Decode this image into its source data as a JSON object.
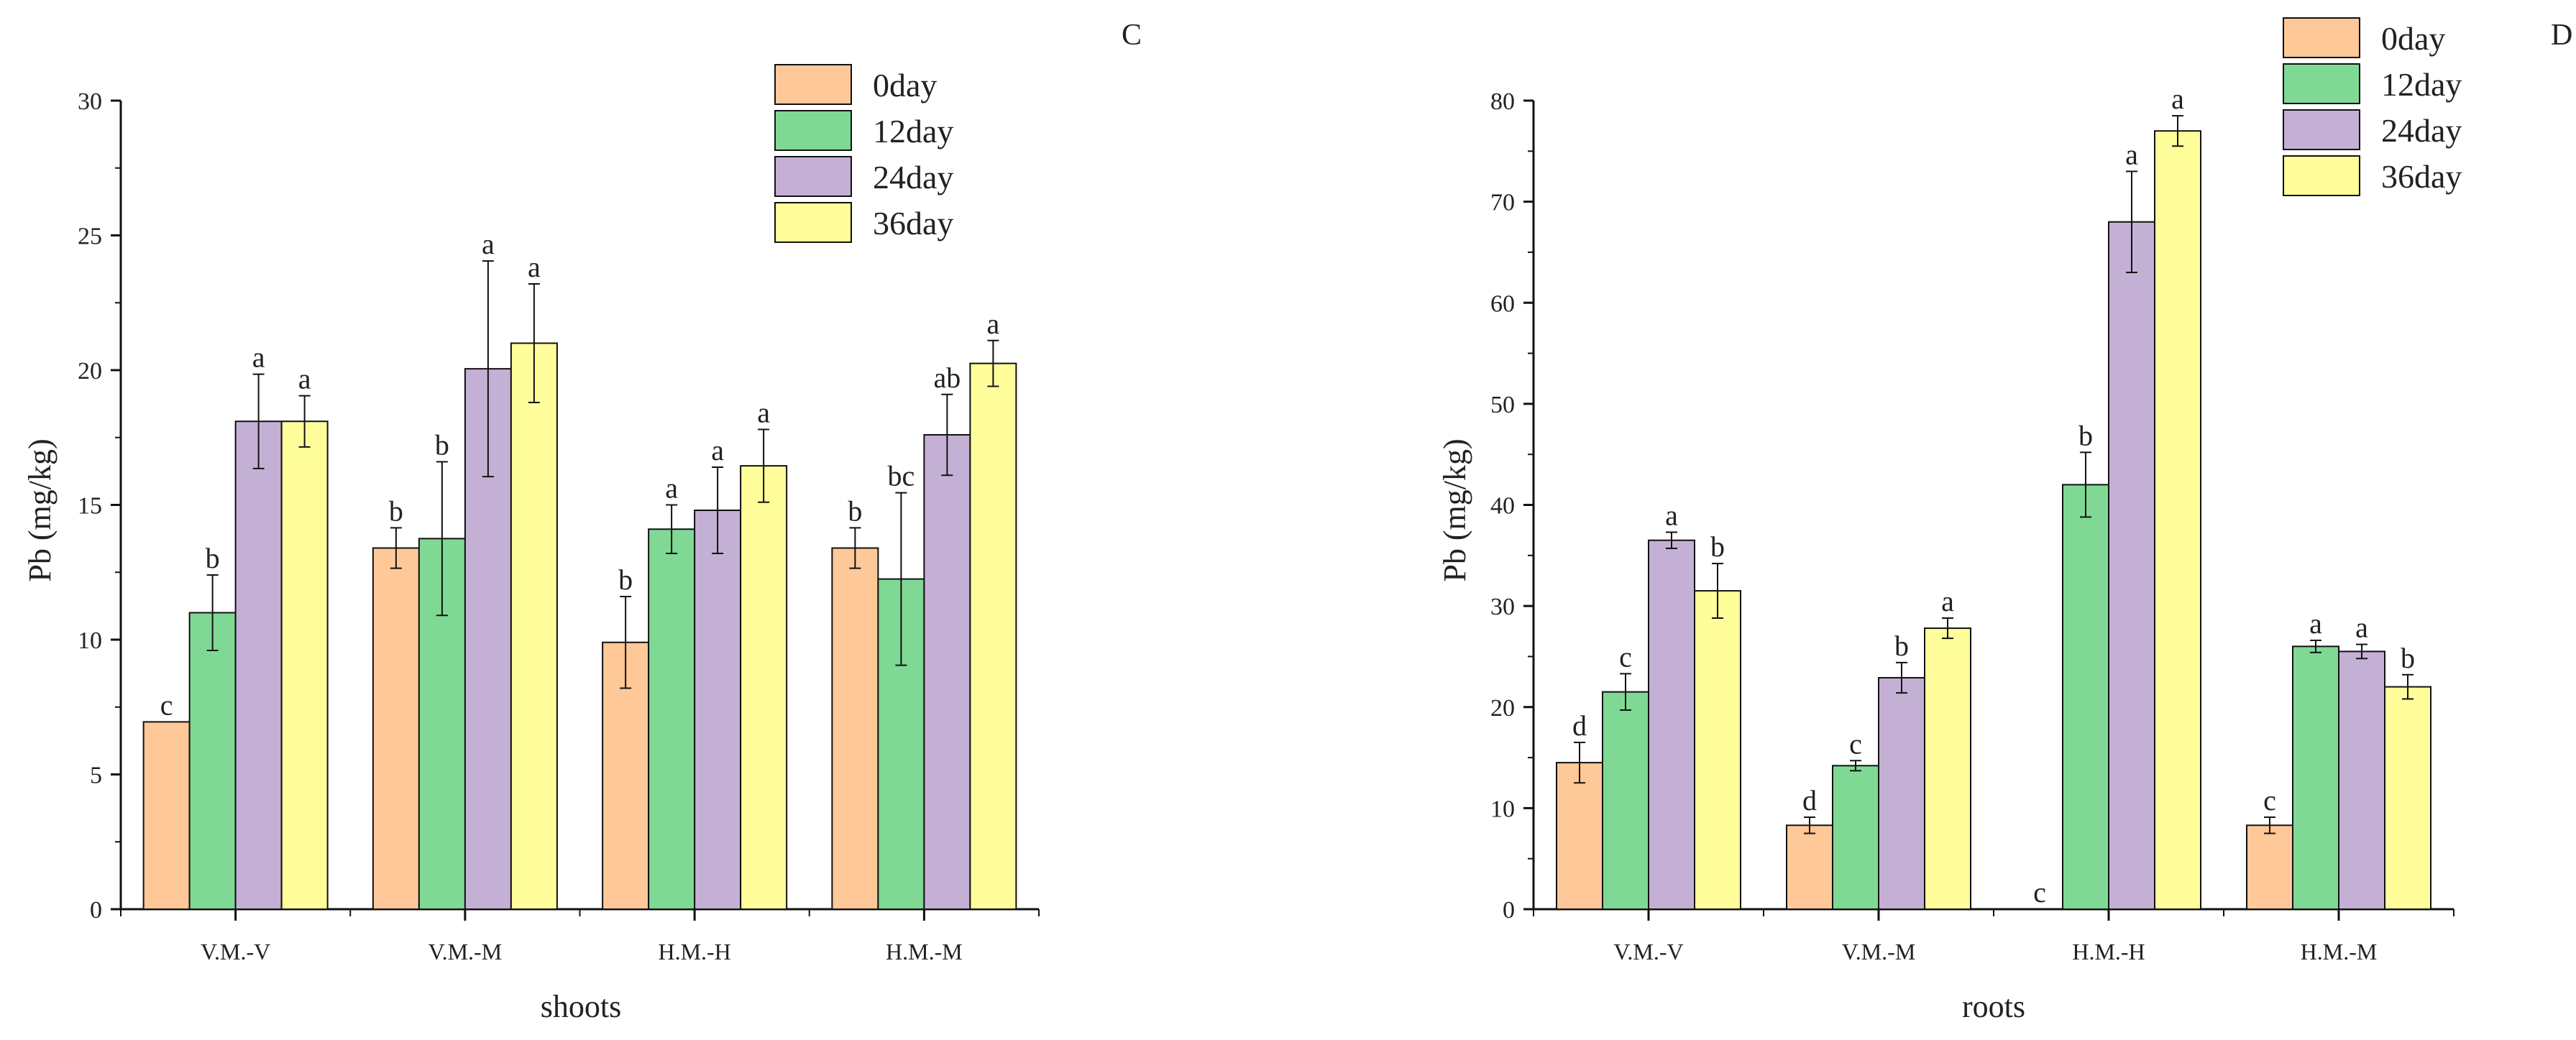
{
  "colors": {
    "0day": "#ffc899",
    "12day": "#7fd995",
    "24day": "#c5b0d5",
    "36day": "#fffe9a",
    "stroke": "#111111"
  },
  "legend": [
    "0day",
    "12day",
    "24day",
    "36day"
  ],
  "chart_data": [
    {
      "type": "bar",
      "panel_label": "C",
      "xlabel": "shoots",
      "ylabel": "Pb (mg/kg)",
      "ylim": [
        0,
        30
      ],
      "yticks": [
        0,
        5,
        10,
        15,
        20,
        25,
        30
      ],
      "categories": [
        "V.M.-V",
        "V.M.-M",
        "H.M.-H",
        "H.M.-M"
      ],
      "legend_position": "top-right",
      "grid": false,
      "series": [
        {
          "name": "0day",
          "values": [
            6.95,
            13.4,
            9.9,
            13.4
          ],
          "errors": [
            0,
            0.75,
            1.7,
            0.75
          ],
          "labels": [
            "c",
            "b",
            "b",
            "b"
          ]
        },
        {
          "name": "12day",
          "values": [
            11.0,
            13.75,
            14.1,
            12.25
          ],
          "errors": [
            1.4,
            2.85,
            0.9,
            3.2
          ],
          "labels": [
            "b",
            "b",
            "a",
            "bc"
          ]
        },
        {
          "name": "24day",
          "values": [
            18.1,
            20.05,
            14.8,
            17.6
          ],
          "errors": [
            1.75,
            4.0,
            1.6,
            1.5
          ],
          "labels": [
            "a",
            "a",
            "a",
            "ab"
          ]
        },
        {
          "name": "36day",
          "values": [
            18.1,
            21.0,
            16.45,
            20.25
          ],
          "errors": [
            0.95,
            2.2,
            1.35,
            0.85
          ],
          "labels": [
            "a",
            "a",
            "a",
            "a"
          ]
        }
      ]
    },
    {
      "type": "bar",
      "panel_label": "D",
      "xlabel": "roots",
      "ylabel": "Pb (mg/kg)",
      "ylim": [
        0,
        80
      ],
      "yticks": [
        0,
        10,
        20,
        30,
        40,
        50,
        60,
        70,
        80
      ],
      "categories": [
        "V.M.-V",
        "V.M.-M",
        "H.M.-H",
        "H.M.-M"
      ],
      "legend_position": "top-right",
      "grid": false,
      "series": [
        {
          "name": "0day",
          "values": [
            14.5,
            8.3,
            0,
            8.3
          ],
          "errors": [
            2.0,
            0.8,
            0,
            0.8
          ],
          "labels": [
            "d",
            "d",
            "c",
            "c"
          ]
        },
        {
          "name": "12day",
          "values": [
            21.5,
            14.2,
            42.0,
            26.0
          ],
          "errors": [
            1.8,
            0.5,
            3.2,
            0.6
          ],
          "labels": [
            "c",
            "c",
            "b",
            "a"
          ]
        },
        {
          "name": "24day",
          "values": [
            36.5,
            22.9,
            68.0,
            25.5
          ],
          "errors": [
            0.8,
            1.5,
            5.0,
            0.7
          ],
          "labels": [
            "a",
            "b",
            "a",
            "a"
          ]
        },
        {
          "name": "36day",
          "values": [
            31.5,
            27.8,
            77.0,
            22.0
          ],
          "errors": [
            2.7,
            1.0,
            1.5,
            1.2
          ],
          "labels": [
            "b",
            "a",
            "a",
            "b"
          ]
        }
      ]
    }
  ]
}
